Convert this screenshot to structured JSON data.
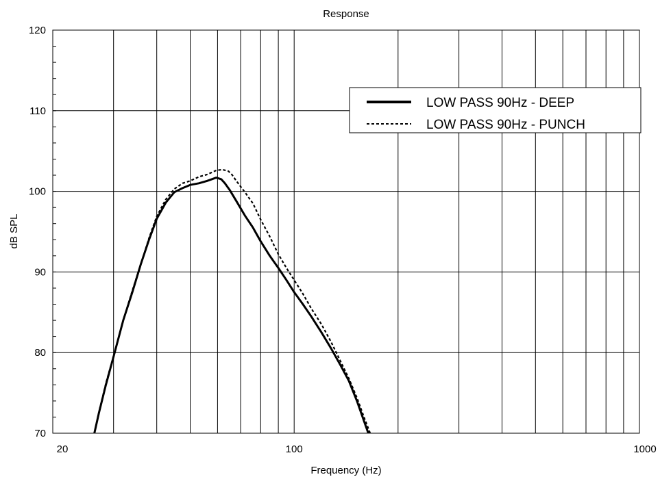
{
  "chart_data": {
    "type": "line",
    "title": "Response",
    "xlabel": "Frequency (Hz)",
    "ylabel": "dB SPL",
    "x_scale": "log",
    "xlim": [
      20,
      1000
    ],
    "ylim": [
      70,
      120
    ],
    "x_tick_labels": [
      "20",
      "100",
      "1000"
    ],
    "y_tick_labels": [
      "70",
      "80",
      "90",
      "100",
      "110",
      "120"
    ],
    "grid": true,
    "legend_position": "top-right",
    "series": [
      {
        "name": "LOW PASS 90Hz - DEEP",
        "style": "solid",
        "x": [
          26.4,
          27.2,
          28.5,
          30.0,
          32.0,
          34.0,
          36.0,
          38.0,
          40.0,
          42.5,
          45.0,
          47.5,
          50.0,
          53.0,
          56.0,
          59.5,
          61.5,
          63.0,
          65.0,
          68.0,
          72.0,
          76.0,
          80.0,
          85.0,
          90.0,
          95.0,
          100.0,
          106.0,
          112.0,
          120.0,
          128.0,
          136.0,
          144.0,
          152.0,
          160.0,
          164.0
        ],
        "y": [
          70.0,
          72.5,
          76.0,
          79.5,
          84.0,
          87.5,
          91.0,
          94.0,
          96.6,
          98.6,
          99.9,
          100.4,
          100.8,
          101.0,
          101.3,
          101.7,
          101.5,
          101.0,
          100.2,
          98.8,
          97.0,
          95.5,
          93.8,
          92.0,
          90.5,
          89.0,
          87.5,
          86.0,
          84.5,
          82.5,
          80.5,
          78.5,
          76.5,
          74.0,
          71.3,
          70.0
        ]
      },
      {
        "name": "LOW PASS 90Hz - PUNCH",
        "style": "dashed",
        "x": [
          26.4,
          27.2,
          28.5,
          30.0,
          32.0,
          34.0,
          36.0,
          38.0,
          40.0,
          42.5,
          45.0,
          47.5,
          50.0,
          53.0,
          56.0,
          59.5,
          62.0,
          64.5,
          66.0,
          68.0,
          72.0,
          76.0,
          80.0,
          85.0,
          90.0,
          95.0,
          100.0,
          106.0,
          112.0,
          120.0,
          128.0,
          136.0,
          144.0,
          152.0,
          160.0,
          166.0
        ],
        "y": [
          70.0,
          72.6,
          76.2,
          79.6,
          84.0,
          87.7,
          91.0,
          94.2,
          96.9,
          99.0,
          100.3,
          101.0,
          101.3,
          101.8,
          102.1,
          102.6,
          102.7,
          102.5,
          102.1,
          101.3,
          99.9,
          98.5,
          96.5,
          94.4,
          92.2,
          90.5,
          89.0,
          87.3,
          85.5,
          83.5,
          81.3,
          79.0,
          76.8,
          74.4,
          71.8,
          70.0
        ]
      }
    ]
  }
}
